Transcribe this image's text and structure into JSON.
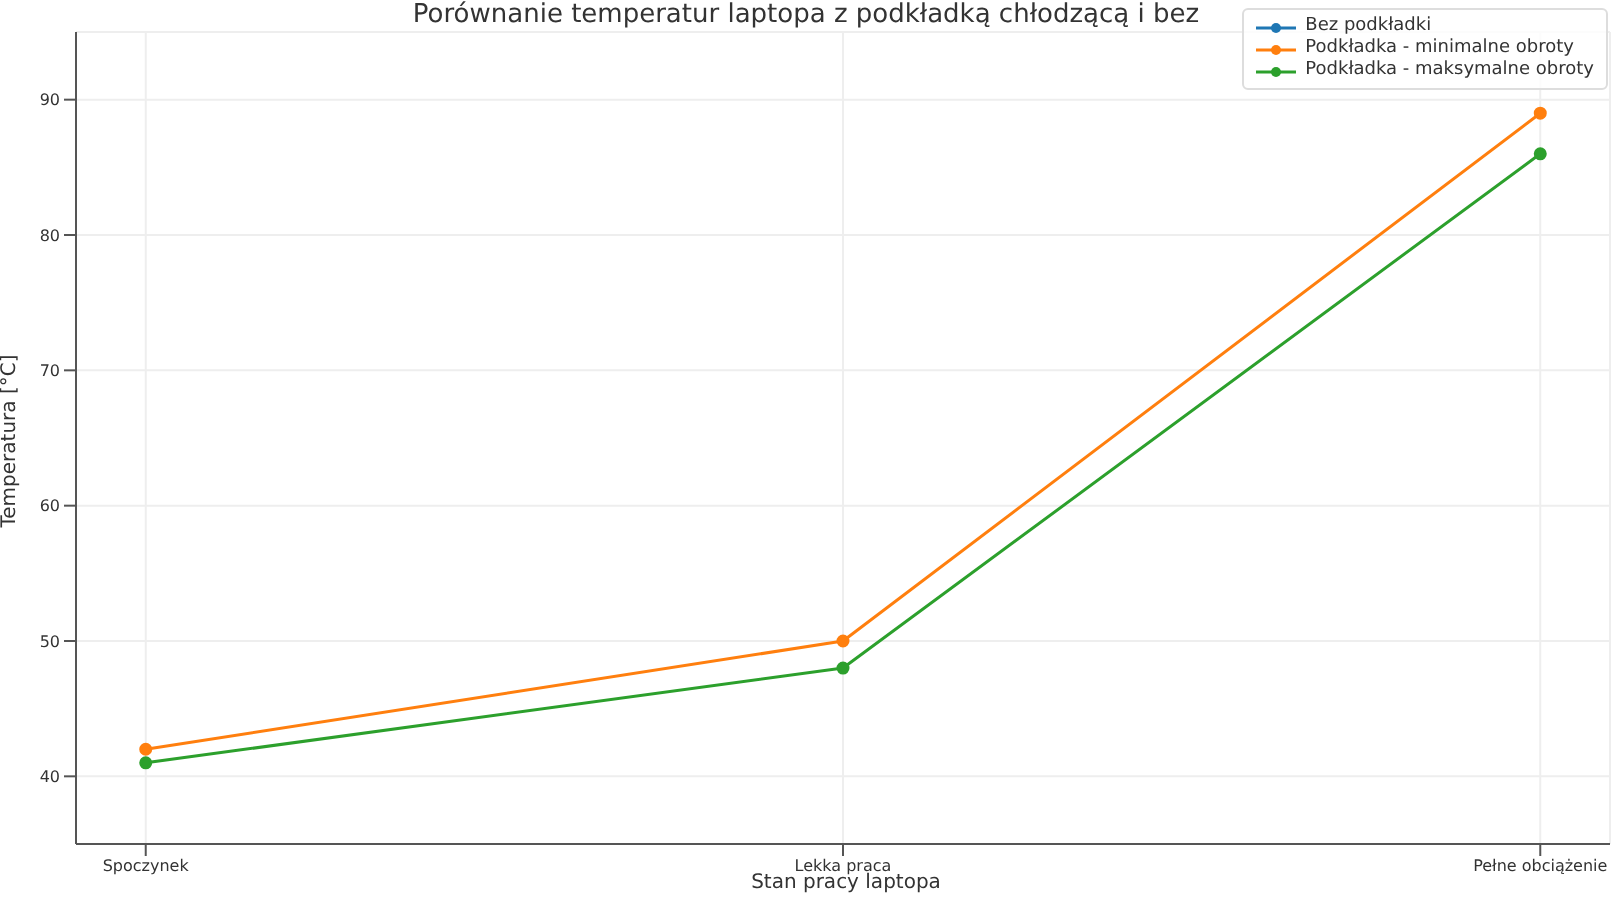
{
  "chart_data": {
    "type": "line",
    "title": "Porównanie temperatur laptopa z podkładką chłodzącą i bez",
    "xlabel": "Stan pracy laptopa",
    "ylabel": "Temperatura [°C]",
    "categories": [
      "Spoczynek",
      "Lekka praca",
      "Pełne obciążenie"
    ],
    "series": [
      {
        "name": "Bez podkładki",
        "color": "#1f77b4",
        "values": [
          null,
          null,
          null
        ]
      },
      {
        "name": "Podkładka - minimalne obroty",
        "color": "#ff7f0e",
        "values": [
          42,
          50,
          89
        ]
      },
      {
        "name": "Podkładka - maksymalne obroty",
        "color": "#2ca02c",
        "values": [
          41,
          48,
          86
        ]
      }
    ],
    "ylim": [
      35,
      95
    ],
    "yticks": [
      40,
      50,
      60,
      70,
      80,
      90
    ],
    "grid": true,
    "legend": "top right",
    "marker": "circle",
    "line_style": "solid"
  }
}
